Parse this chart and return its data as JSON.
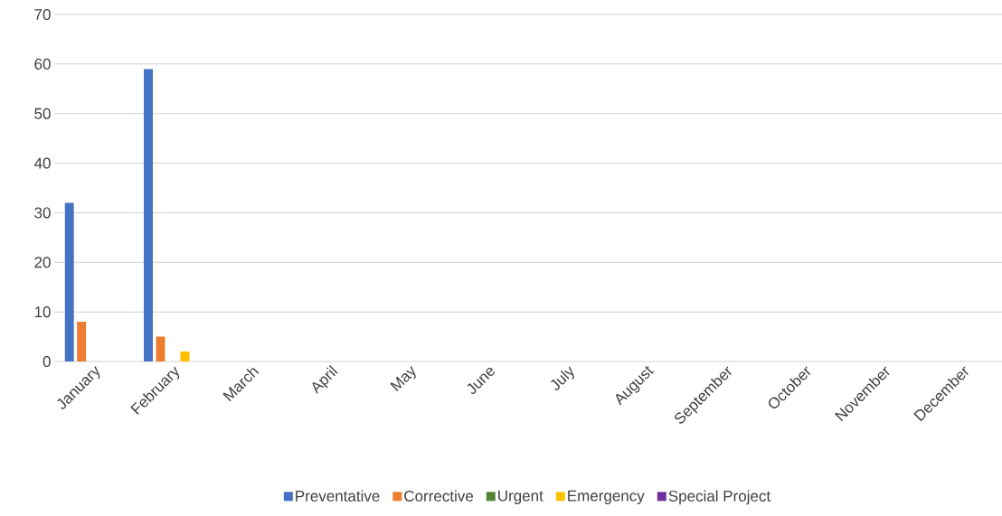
{
  "chart_data": {
    "type": "bar",
    "categories": [
      "January",
      "February",
      "March",
      "April",
      "May",
      "June",
      "July",
      "August",
      "September",
      "October",
      "November",
      "December"
    ],
    "series": [
      {
        "name": "Preventative",
        "color": "#4472c4",
        "values": [
          32,
          59,
          0,
          0,
          0,
          0,
          0,
          0,
          0,
          0,
          0,
          0
        ]
      },
      {
        "name": "Corrective",
        "color": "#ed7d31",
        "values": [
          8,
          5,
          0,
          0,
          0,
          0,
          0,
          0,
          0,
          0,
          0,
          0
        ]
      },
      {
        "name": "Urgent",
        "color": "#548235",
        "values": [
          0,
          0,
          0,
          0,
          0,
          0,
          0,
          0,
          0,
          0,
          0,
          0
        ]
      },
      {
        "name": "Emergency",
        "color": "#ffc000",
        "values": [
          0,
          2,
          0,
          0,
          0,
          0,
          0,
          0,
          0,
          0,
          0,
          0
        ]
      },
      {
        "name": "Special Project",
        "color": "#7030a0",
        "values": [
          0,
          0,
          0,
          0,
          0,
          0,
          0,
          0,
          0,
          0,
          0,
          0
        ]
      }
    ],
    "ylim": [
      0,
      70
    ],
    "yticks": [
      0,
      10,
      20,
      30,
      40,
      50,
      60,
      70
    ],
    "grid": "y",
    "legend": "bottom"
  }
}
